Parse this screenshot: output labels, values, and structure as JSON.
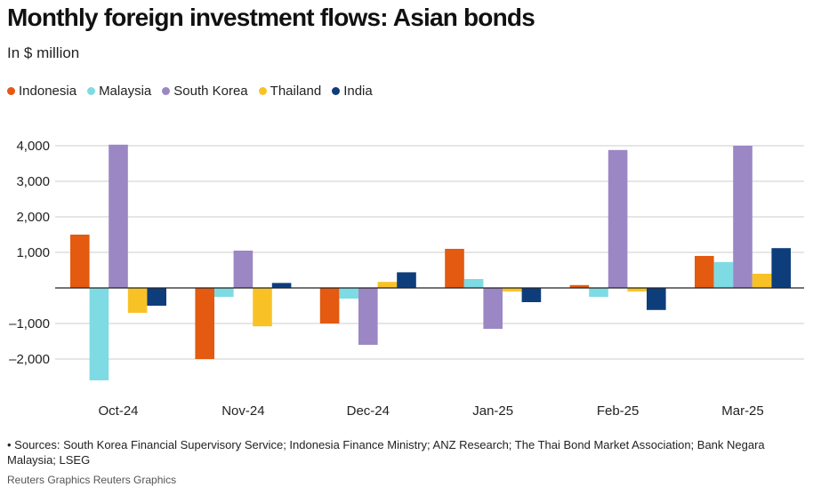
{
  "title": "Monthly foreign investment flows: Asian bonds",
  "subtitle": "In $ million",
  "chart_data": {
    "type": "bar",
    "categories": [
      "Oct-24",
      "Nov-24",
      "Dec-24",
      "Jan-25",
      "Feb-25",
      "Mar-25"
    ],
    "series": [
      {
        "name": "Indonesia",
        "color": "#e35a10",
        "values": [
          1500,
          -2000,
          -1000,
          1100,
          80,
          900
        ]
      },
      {
        "name": "Malaysia",
        "color": "#7fdbe3",
        "values": [
          -2600,
          -250,
          -300,
          250,
          -250,
          730
        ]
      },
      {
        "name": "South Korea",
        "color": "#9a87c4",
        "values": [
          4030,
          1050,
          -1600,
          -1150,
          3880,
          4000
        ]
      },
      {
        "name": "Thailand",
        "color": "#f8c227",
        "values": [
          -700,
          -1080,
          170,
          -100,
          -100,
          400
        ]
      },
      {
        "name": "India",
        "color": "#0e3d7c",
        "values": [
          -500,
          140,
          440,
          -400,
          -620,
          1120
        ]
      }
    ],
    "y_ticks": [
      {
        "value": 4000,
        "label": "4,000"
      },
      {
        "value": 3000,
        "label": "3,000"
      },
      {
        "value": 2000,
        "label": "2,000"
      },
      {
        "value": 1000,
        "label": "1,000"
      },
      {
        "value": -1000,
        "label": "–1,000"
      },
      {
        "value": -2000,
        "label": "–2,000"
      }
    ],
    "ylim": [
      -2700,
      4300
    ],
    "grid": true,
    "legend_position": "top-left"
  },
  "footnote": "• Sources: South Korea Financial Supervisory Service; Indonesia Finance Ministry; ANZ Research; The Thai Bond Market Association; Bank Negara Malaysia; LSEG",
  "credit": "Reuters Graphics Reuters Graphics"
}
